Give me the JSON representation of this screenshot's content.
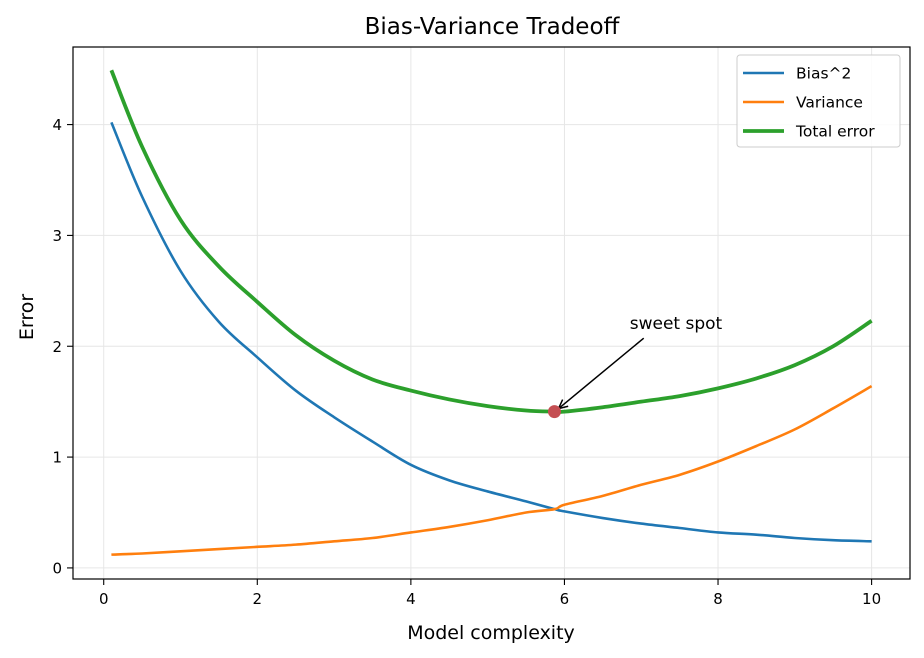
{
  "chart_data": {
    "type": "line",
    "title": "Bias-Variance Tradeoff",
    "xlabel": "Model complexity",
    "ylabel": "Error",
    "xlim": [
      -0.4,
      10.5
    ],
    "ylim": [
      -0.1,
      4.7
    ],
    "xticks": [
      0,
      2,
      4,
      6,
      8,
      10
    ],
    "yticks": [
      0,
      1,
      2,
      3,
      4
    ],
    "grid": true,
    "legend_position": "top-right",
    "series": [
      {
        "name": "Bias^2",
        "color": "#1f77b4",
        "x": [
          0.1,
          0.5,
          1,
          1.5,
          2,
          2.5,
          3,
          3.5,
          4,
          4.5,
          5,
          5.5,
          5.87,
          6,
          6.5,
          7,
          7.5,
          8,
          8.5,
          9,
          9.5,
          10
        ],
        "y": [
          4.02,
          3.35,
          2.68,
          2.22,
          1.9,
          1.6,
          1.36,
          1.14,
          0.93,
          0.79,
          0.69,
          0.6,
          0.53,
          0.51,
          0.45,
          0.4,
          0.36,
          0.32,
          0.3,
          0.27,
          0.25,
          0.24
        ]
      },
      {
        "name": "Variance",
        "color": "#ff7f0e",
        "x": [
          0.1,
          0.5,
          1,
          1.5,
          2,
          2.5,
          3,
          3.5,
          4,
          4.5,
          5,
          5.5,
          5.87,
          6,
          6.5,
          7,
          7.5,
          8,
          8.5,
          9,
          9.5,
          10
        ],
        "y": [
          0.12,
          0.13,
          0.15,
          0.17,
          0.19,
          0.21,
          0.24,
          0.27,
          0.32,
          0.37,
          0.43,
          0.5,
          0.53,
          0.57,
          0.65,
          0.75,
          0.84,
          0.96,
          1.1,
          1.25,
          1.44,
          1.64
        ]
      },
      {
        "name": "Total error",
        "color": "#2ca02c",
        "x": [
          0.1,
          0.5,
          1,
          1.5,
          2,
          2.5,
          3,
          3.5,
          4,
          4.5,
          5,
          5.5,
          5.87,
          6,
          6.5,
          7,
          7.5,
          8,
          8.5,
          9,
          9.5,
          10
        ],
        "y": [
          4.49,
          3.8,
          3.14,
          2.72,
          2.4,
          2.1,
          1.87,
          1.7,
          1.6,
          1.52,
          1.46,
          1.42,
          1.41,
          1.41,
          1.45,
          1.5,
          1.55,
          1.62,
          1.71,
          1.83,
          2.0,
          2.23
        ]
      }
    ],
    "annotations": [
      {
        "text": "sweet spot",
        "point": [
          5.87,
          1.41
        ],
        "text_pos": [
          6.85,
          2.1
        ],
        "marker_color": "#c44e52"
      }
    ]
  }
}
